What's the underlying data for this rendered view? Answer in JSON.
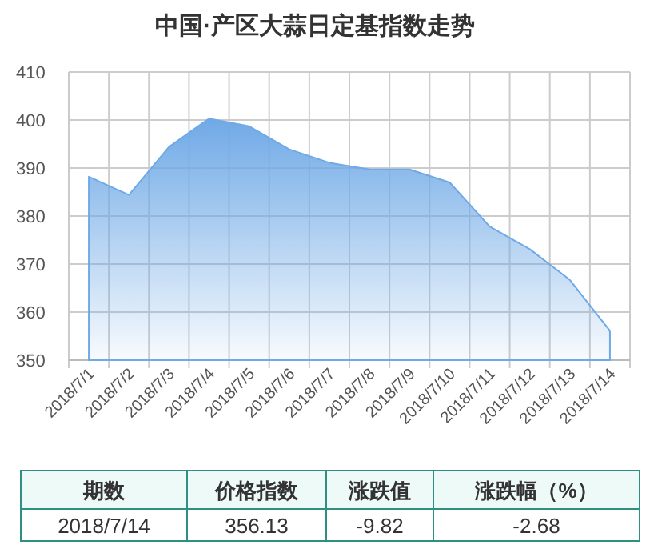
{
  "chart_data": {
    "type": "area",
    "title": "中国·产区大蒜日定基指数走势",
    "categories": [
      "2018/7/1",
      "2018/7/2",
      "2018/7/3",
      "2018/7/4",
      "2018/7/5",
      "2018/7/6",
      "2018/7/7",
      "2018/7/8",
      "2018/7/9",
      "2018/7/10",
      "2018/7/11",
      "2018/7/12",
      "2018/7/13",
      "2018/7/14"
    ],
    "series": [
      {
        "color": "#6fa9e6",
        "values": [
          388.2,
          384.4,
          394.4,
          400.3,
          398.7,
          393.9,
          391.1,
          389.7,
          389.7,
          387.0,
          377.8,
          373.1,
          366.7,
          356.1
        ]
      }
    ],
    "ylim": [
      350,
      410
    ],
    "yticks": [
      350,
      360,
      370,
      380,
      390,
      400,
      410
    ],
    "grid": true,
    "marker": "none",
    "annotations": [
      "期数",
      "价格指数",
      "涨跌值",
      "涨跌幅（%）",
      "2018/7/14",
      "356.13",
      "-9.82",
      "-2.68"
    ]
  }
}
